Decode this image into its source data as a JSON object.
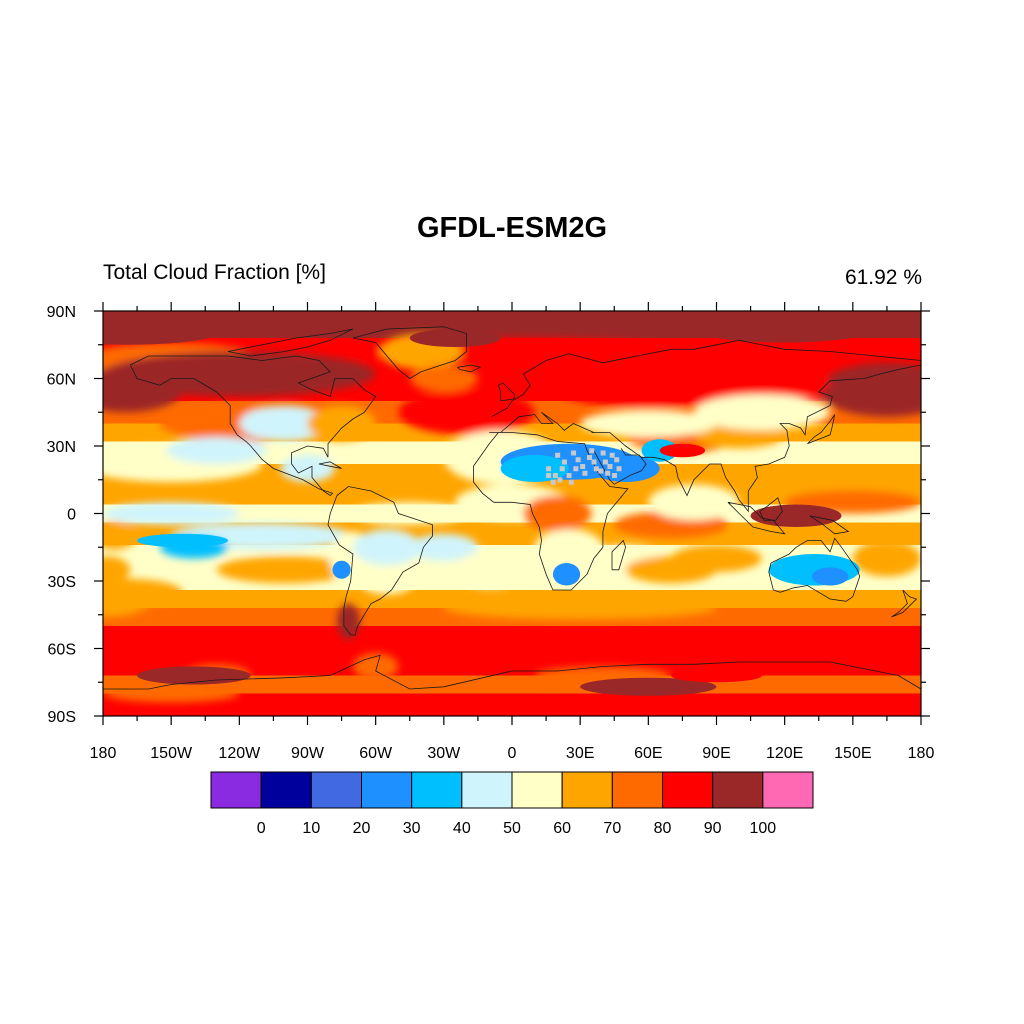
{
  "title": "GFDL-ESM2G",
  "left_string": "Total Cloud Fraction [%]",
  "right_string": "61.92 %",
  "lat_ticks": [
    {
      "label": "90N",
      "value": 90
    },
    {
      "label": "60N",
      "value": 60
    },
    {
      "label": "30N",
      "value": 30
    },
    {
      "label": "0",
      "value": 0
    },
    {
      "label": "30S",
      "value": -30
    },
    {
      "label": "60S",
      "value": -60
    },
    {
      "label": "90S",
      "value": -90
    }
  ],
  "lon_ticks": [
    {
      "label": "180",
      "value": -180
    },
    {
      "label": "150W",
      "value": -150
    },
    {
      "label": "120W",
      "value": -120
    },
    {
      "label": "90W",
      "value": -90
    },
    {
      "label": "60W",
      "value": -60
    },
    {
      "label": "30W",
      "value": -30
    },
    {
      "label": "0",
      "value": 0
    },
    {
      "label": "30E",
      "value": 30
    },
    {
      "label": "60E",
      "value": 60
    },
    {
      "label": "90E",
      "value": 90
    },
    {
      "label": "120E",
      "value": 120
    },
    {
      "label": "150E",
      "value": 150
    },
    {
      "label": "180",
      "value": 180
    }
  ],
  "colorbar": {
    "levels": [
      "0",
      "10",
      "20",
      "30",
      "40",
      "50",
      "60",
      "70",
      "80",
      "90",
      "100"
    ],
    "colors": [
      "#8a2be2",
      "#00009c",
      "#4169e1",
      "#1e90ff",
      "#00bfff",
      "#d0f4fb",
      "#ffffc8",
      "#ffa500",
      "#ff6a00",
      "#ff0000",
      "#9b2828",
      "#ff69b4"
    ]
  },
  "missing_color": "#c8c8c8",
  "chart_data": {
    "type": "heatmap",
    "variable": "Total Cloud Fraction [%]",
    "model": "GFDL-ESM2G",
    "global_mean": 61.92,
    "xlim": [
      -180,
      180
    ],
    "ylim": [
      -90,
      90
    ],
    "projection": "cylindrical-equidistant",
    "regions": [
      {
        "name": "arctic-ocean",
        "lon": [
          -180,
          180
        ],
        "lat": [
          78,
          90
        ],
        "value": 95
      },
      {
        "name": "north-atlantic-storm-track",
        "lon": [
          -60,
          20
        ],
        "lat": [
          45,
          70
        ],
        "value": 88
      },
      {
        "name": "north-pacific-storm-track",
        "lon": [
          140,
          240
        ],
        "lat": [
          40,
          65
        ],
        "value": 88
      },
      {
        "name": "greenland",
        "lon": [
          -55,
          -20
        ],
        "lat": [
          62,
          82
        ],
        "value": 65
      },
      {
        "name": "sahara-arabia",
        "lon": [
          -15,
          60
        ],
        "lat": [
          12,
          32
        ],
        "value": 25
      },
      {
        "name": "southern-africa",
        "lon": [
          15,
          30
        ],
        "lat": [
          -32,
          -20
        ],
        "value": 30
      },
      {
        "name": "australia",
        "lon": [
          115,
          150
        ],
        "lat": [
          -32,
          -20
        ],
        "value": 35
      },
      {
        "name": "se-pacific-subtropics",
        "lon": [
          -150,
          -90
        ],
        "lat": [
          -20,
          -5
        ],
        "value": 40
      },
      {
        "name": "maritime-continent",
        "lon": [
          90,
          160
        ],
        "lat": [
          -12,
          5
        ],
        "value": 88
      },
      {
        "name": "tropical-atlantic",
        "lon": [
          -50,
          0
        ],
        "lat": [
          -15,
          5
        ],
        "value": 45
      },
      {
        "name": "southern-ocean-storm-track",
        "lon": [
          -180,
          180
        ],
        "lat": [
          -70,
          -52
        ],
        "value": 88
      },
      {
        "name": "southern-ocean-west",
        "lon": [
          -180,
          -140
        ],
        "lat": [
          -72,
          -62
        ],
        "value": 95
      },
      {
        "name": "east-antarctica-interior",
        "lon": [
          30,
          150
        ],
        "lat": [
          -85,
          -72
        ],
        "value": 80
      },
      {
        "name": "antarctica-plateau",
        "lon": [
          -180,
          180
        ],
        "lat": [
          -90,
          -80
        ],
        "value": 85
      },
      {
        "name": "subtropical-oceans",
        "lon": [
          -180,
          180
        ],
        "lat": [
          -40,
          -25
        ],
        "value": 65
      }
    ]
  }
}
